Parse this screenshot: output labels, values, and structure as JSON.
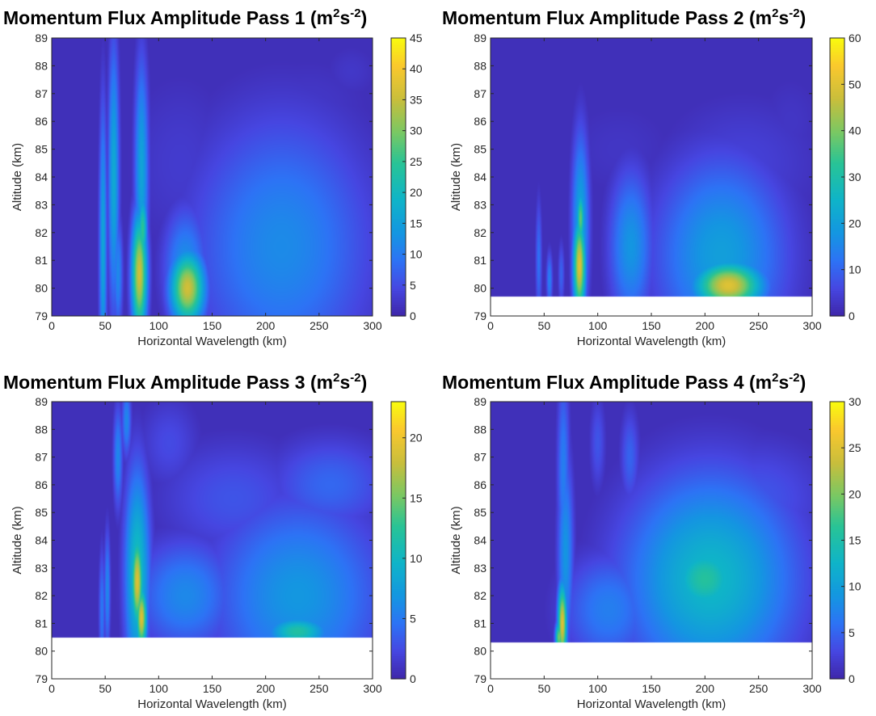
{
  "chart_data": [
    {
      "type": "heatmap",
      "title_main": "Momentum Flux Amplitude Pass 1 (m",
      "title_unit_1": "2",
      "title_unit_mid": "s",
      "title_unit_2": "-2",
      "title_end": ")",
      "xlabel": "Horizontal Wavelength (km)",
      "ylabel": "Altitude (km)",
      "xlim": [
        0,
        300
      ],
      "ylim": [
        79,
        89
      ],
      "xticks": [
        "0",
        "50",
        "100",
        "150",
        "200",
        "250",
        "300"
      ],
      "yticks": [
        "79",
        "80",
        "81",
        "82",
        "83",
        "84",
        "85",
        "86",
        "87",
        "88",
        "89"
      ],
      "colorbar_lim": [
        0,
        45
      ],
      "colorbar_ticks": [
        "0",
        "5",
        "10",
        "15",
        "20",
        "25",
        "30",
        "35",
        "40",
        "45"
      ],
      "data_bottom": 79,
      "features": [
        {
          "x": 48,
          "y": 81.5,
          "wx": 2.5,
          "wy": 3.5,
          "v": 16
        },
        {
          "x": 58,
          "y": 84.0,
          "wx": 3.5,
          "wy": 3.3,
          "v": 17
        },
        {
          "x": 59,
          "y": 82.8,
          "wx": 2.5,
          "wy": 0.8,
          "v": 14
        },
        {
          "x": 62,
          "y": 80.5,
          "wx": 3.0,
          "wy": 1.4,
          "v": 12
        },
        {
          "x": 84,
          "y": 84.2,
          "wx": 4.5,
          "wy": 2.8,
          "v": 16
        },
        {
          "x": 82,
          "y": 80.5,
          "wx": 5.0,
          "wy": 1.5,
          "v": 36
        },
        {
          "x": 85,
          "y": 82.1,
          "wx": 3.0,
          "wy": 0.9,
          "v": 25
        },
        {
          "x": 127,
          "y": 80.0,
          "wx": 11.0,
          "wy": 0.9,
          "v": 36
        },
        {
          "x": 125,
          "y": 80.7,
          "wx": 14.0,
          "wy": 1.5,
          "v": 13
        },
        {
          "x": 215,
          "y": 81.5,
          "wx": 58.0,
          "wy": 3.2,
          "v": 12
        },
        {
          "x": 160,
          "y": 80.8,
          "wx": 28.0,
          "wy": 2.0,
          "v": 6
        },
        {
          "x": 120,
          "y": 84.5,
          "wx": 40.0,
          "wy": 2.5,
          "v": 3
        },
        {
          "x": 240,
          "y": 86.5,
          "wx": 50.0,
          "wy": 1.5,
          "v": 2.5
        },
        {
          "x": 280,
          "y": 87.8,
          "wx": 20.0,
          "wy": 0.8,
          "v": 2.5
        }
      ]
    },
    {
      "type": "heatmap",
      "title_main": "Momentum Flux Amplitude Pass 2 (m",
      "title_unit_1": "2",
      "title_unit_mid": "s",
      "title_unit_2": "-2",
      "title_end": ")",
      "xlabel": "Horizontal Wavelength (km)",
      "ylabel": "Altitude (km)",
      "xlim": [
        0,
        300
      ],
      "ylim": [
        79,
        89
      ],
      "xticks": [
        "0",
        "50",
        "100",
        "150",
        "200",
        "250",
        "300"
      ],
      "yticks": [
        "79",
        "80",
        "81",
        "82",
        "83",
        "84",
        "85",
        "86",
        "87",
        "88",
        "89"
      ],
      "colorbar_lim": [
        0,
        60
      ],
      "colorbar_ticks": [
        "0",
        "10",
        "20",
        "30",
        "40",
        "50",
        "60"
      ],
      "data_bottom": 79.7,
      "features": [
        {
          "x": 45,
          "y": 81.0,
          "wx": 2.0,
          "wy": 1.5,
          "v": 12
        },
        {
          "x": 55,
          "y": 80.3,
          "wx": 2.0,
          "wy": 0.7,
          "v": 14
        },
        {
          "x": 66,
          "y": 80.5,
          "wx": 2.0,
          "wy": 0.8,
          "v": 10
        },
        {
          "x": 84,
          "y": 82.3,
          "wx": 5.5,
          "wy": 2.3,
          "v": 22
        },
        {
          "x": 83,
          "y": 80.8,
          "wx": 4.0,
          "wy": 1.2,
          "v": 50
        },
        {
          "x": 84,
          "y": 82.5,
          "wx": 2.5,
          "wy": 0.7,
          "v": 38
        },
        {
          "x": 131,
          "y": 81.5,
          "wx": 14.0,
          "wy": 1.9,
          "v": 18
        },
        {
          "x": 215,
          "y": 81.2,
          "wx": 42.0,
          "wy": 2.4,
          "v": 20
        },
        {
          "x": 222,
          "y": 80.1,
          "wx": 22.0,
          "wy": 0.6,
          "v": 50
        },
        {
          "x": 235,
          "y": 84.5,
          "wx": 55.0,
          "wy": 1.8,
          "v": 5
        },
        {
          "x": 120,
          "y": 85.0,
          "wx": 45.0,
          "wy": 1.5,
          "v": 3
        },
        {
          "x": 280,
          "y": 86.0,
          "wx": 25.0,
          "wy": 1.5,
          "v": 3
        }
      ]
    },
    {
      "type": "heatmap",
      "title_main": "Momentum Flux Amplitude Pass 3 (m",
      "title_unit_1": "2",
      "title_unit_mid": "s",
      "title_unit_2": "-2",
      "title_end": ")",
      "xlabel": "Horizontal Wavelength (km)",
      "ylabel": "Altitude (km)",
      "xlim": [
        0,
        300
      ],
      "ylim": [
        79,
        89
      ],
      "xticks": [
        "0",
        "50",
        "100",
        "150",
        "200",
        "250",
        "300"
      ],
      "yticks": [
        "79",
        "80",
        "81",
        "82",
        "83",
        "84",
        "85",
        "86",
        "87",
        "88",
        "89"
      ],
      "colorbar_lim": [
        0,
        23
      ],
      "colorbar_ticks": [
        "0",
        "5",
        "10",
        "15",
        "20"
      ],
      "data_bottom": 80.5,
      "features": [
        {
          "x": 47,
          "y": 81.5,
          "wx": 2.0,
          "wy": 1.5,
          "v": 5
        },
        {
          "x": 52,
          "y": 82.2,
          "wx": 2.0,
          "wy": 1.5,
          "v": 6
        },
        {
          "x": 62,
          "y": 87.0,
          "wx": 3.0,
          "wy": 1.3,
          "v": 6
        },
        {
          "x": 70,
          "y": 88.3,
          "wx": 3.0,
          "wy": 0.9,
          "v": 6
        },
        {
          "x": 80,
          "y": 82.8,
          "wx": 8.0,
          "wy": 2.6,
          "v": 11
        },
        {
          "x": 80,
          "y": 82.5,
          "wx": 4.0,
          "wy": 1.2,
          "v": 19
        },
        {
          "x": 84,
          "y": 81.2,
          "wx": 3.5,
          "wy": 0.8,
          "v": 19
        },
        {
          "x": 125,
          "y": 82.0,
          "wx": 32.0,
          "wy": 1.4,
          "v": 6
        },
        {
          "x": 230,
          "y": 82.0,
          "wx": 55.0,
          "wy": 2.4,
          "v": 7
        },
        {
          "x": 230,
          "y": 80.7,
          "wx": 20.0,
          "wy": 0.4,
          "v": 12
        },
        {
          "x": 170,
          "y": 85.5,
          "wx": 50.0,
          "wy": 1.5,
          "v": 3
        },
        {
          "x": 260,
          "y": 86.0,
          "wx": 40.0,
          "wy": 1.2,
          "v": 4
        },
        {
          "x": 110,
          "y": 87.5,
          "wx": 20.0,
          "wy": 1.2,
          "v": 2.5
        }
      ]
    },
    {
      "type": "heatmap",
      "title_main": "Momentum Flux Amplitude Pass 4 (m",
      "title_unit_1": "2",
      "title_unit_mid": "s",
      "title_unit_2": "-2",
      "title_end": ")",
      "xlabel": "Horizontal Wavelength (km)",
      "ylabel": "Altitude (km)",
      "xlim": [
        0,
        300
      ],
      "ylim": [
        79,
        89
      ],
      "xticks": [
        "0",
        "50",
        "100",
        "150",
        "200",
        "250",
        "300"
      ],
      "yticks": [
        "79",
        "80",
        "81",
        "82",
        "83",
        "84",
        "85",
        "86",
        "87",
        "88",
        "89"
      ],
      "colorbar_lim": [
        0,
        30
      ],
      "colorbar_ticks": [
        "0",
        "5",
        "10",
        "15",
        "20",
        "25",
        "30"
      ],
      "data_bottom": 80.3,
      "features": [
        {
          "x": 68,
          "y": 86.5,
          "wx": 4.0,
          "wy": 2.5,
          "v": 7
        },
        {
          "x": 70,
          "y": 83.5,
          "wx": 5.0,
          "wy": 2.5,
          "v": 9
        },
        {
          "x": 67,
          "y": 81.0,
          "wx": 3.0,
          "wy": 1.0,
          "v": 25
        },
        {
          "x": 64,
          "y": 80.5,
          "wx": 2.5,
          "wy": 0.4,
          "v": 20
        },
        {
          "x": 205,
          "y": 82.6,
          "wx": 55.0,
          "wy": 2.6,
          "v": 13
        },
        {
          "x": 110,
          "y": 81.5,
          "wx": 30.0,
          "wy": 1.4,
          "v": 7
        },
        {
          "x": 200,
          "y": 82.6,
          "wx": 25.0,
          "wy": 1.0,
          "v": 16
        },
        {
          "x": 130,
          "y": 87.0,
          "wx": 6.0,
          "wy": 1.2,
          "v": 5
        },
        {
          "x": 100,
          "y": 87.5,
          "wx": 5.0,
          "wy": 1.2,
          "v": 4
        },
        {
          "x": 250,
          "y": 85.5,
          "wx": 45.0,
          "wy": 1.5,
          "v": 4
        }
      ]
    }
  ]
}
